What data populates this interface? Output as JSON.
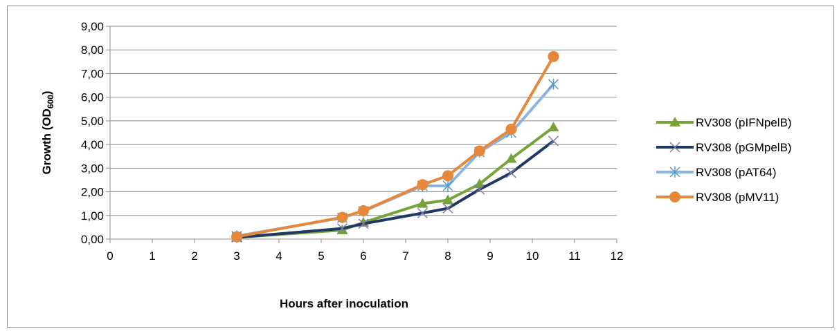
{
  "chart_data": {
    "type": "line",
    "title": "",
    "xlabel": "Hours after inoculation",
    "ylabel": "Growth (OD",
    "ylabel_sub": "600",
    "ylabel_close": ")",
    "xlim": [
      0,
      12
    ],
    "ylim": [
      0,
      9
    ],
    "x_ticks": [
      "0",
      "1",
      "2",
      "3",
      "4",
      "5",
      "6",
      "7",
      "8",
      "9",
      "10",
      "11",
      "12"
    ],
    "y_ticks": [
      "0,00",
      "1,00",
      "2,00",
      "3,00",
      "4,00",
      "5,00",
      "6,00",
      "7,00",
      "8,00",
      "9,00"
    ],
    "grid": "horizontal",
    "legend_position": "right",
    "x": [
      3,
      5.5,
      6,
      7.4,
      8,
      8.75,
      9.5,
      10.5
    ],
    "series": [
      {
        "name": "RV308 (pIFNpelB)",
        "color": "#77a33b",
        "marker": "triangle",
        "values": [
          0.07,
          0.38,
          0.7,
          1.5,
          1.65,
          2.33,
          3.4,
          4.73
        ]
      },
      {
        "name": "RV308 (pGMpelB)",
        "color": "#1f3864",
        "marker": "x",
        "values": [
          0.07,
          0.45,
          0.65,
          1.1,
          1.3,
          2.1,
          2.8,
          4.15
        ]
      },
      {
        "name": "RV308 (pAT64)",
        "color": "#8db3e2",
        "marker": "star",
        "values": [
          0.13,
          0.9,
          1.18,
          2.25,
          2.25,
          3.68,
          4.5,
          6.55
        ]
      },
      {
        "name": "RV308 (pMV11)",
        "color": "#e6883a",
        "marker": "circle",
        "values": [
          0.1,
          0.92,
          1.2,
          2.3,
          2.68,
          3.73,
          4.65,
          7.72
        ]
      }
    ]
  }
}
